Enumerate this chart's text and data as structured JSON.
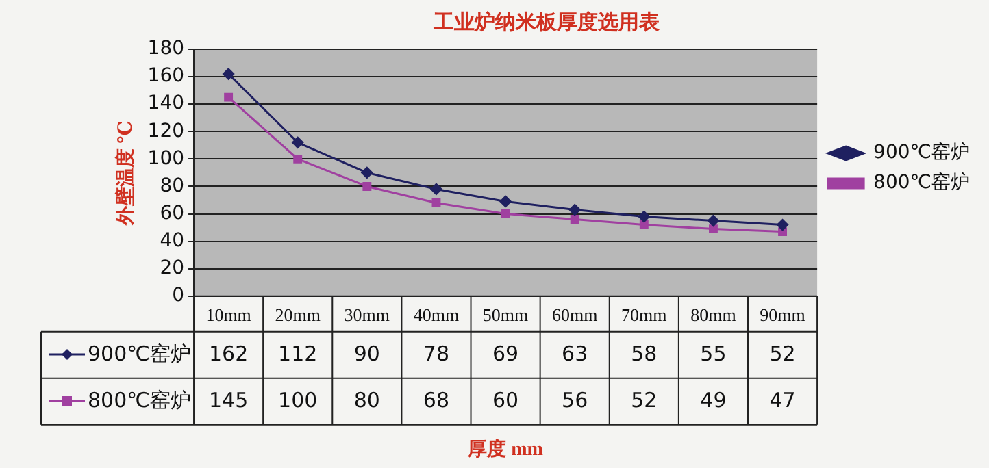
{
  "chart_data": {
    "type": "line",
    "title": "工业炉纳米板厚度选用表",
    "annotations": [
      "厚度 mm"
    ],
    "ylabel": "外壁温度 ℃",
    "categories": [
      "10mm",
      "20mm",
      "30mm",
      "40mm",
      "50mm",
      "60mm",
      "70mm",
      "80mm",
      "90mm"
    ],
    "series": [
      {
        "name": "900℃窑炉",
        "color": "#1f2060",
        "marker": "diamond",
        "values": [
          162,
          112,
          90,
          78,
          69,
          63,
          58,
          55,
          52
        ]
      },
      {
        "name": "800℃窑炉",
        "color": "#a040a0",
        "marker": "square",
        "values": [
          145,
          100,
          80,
          68,
          60,
          56,
          52,
          49,
          47
        ]
      }
    ],
    "ylim": [
      0,
      180
    ],
    "yticks": [
      0,
      20,
      40,
      60,
      80,
      100,
      120,
      140,
      160,
      180
    ],
    "grid": "y",
    "legend": "right",
    "data_labels": true,
    "line_style": "solid"
  }
}
